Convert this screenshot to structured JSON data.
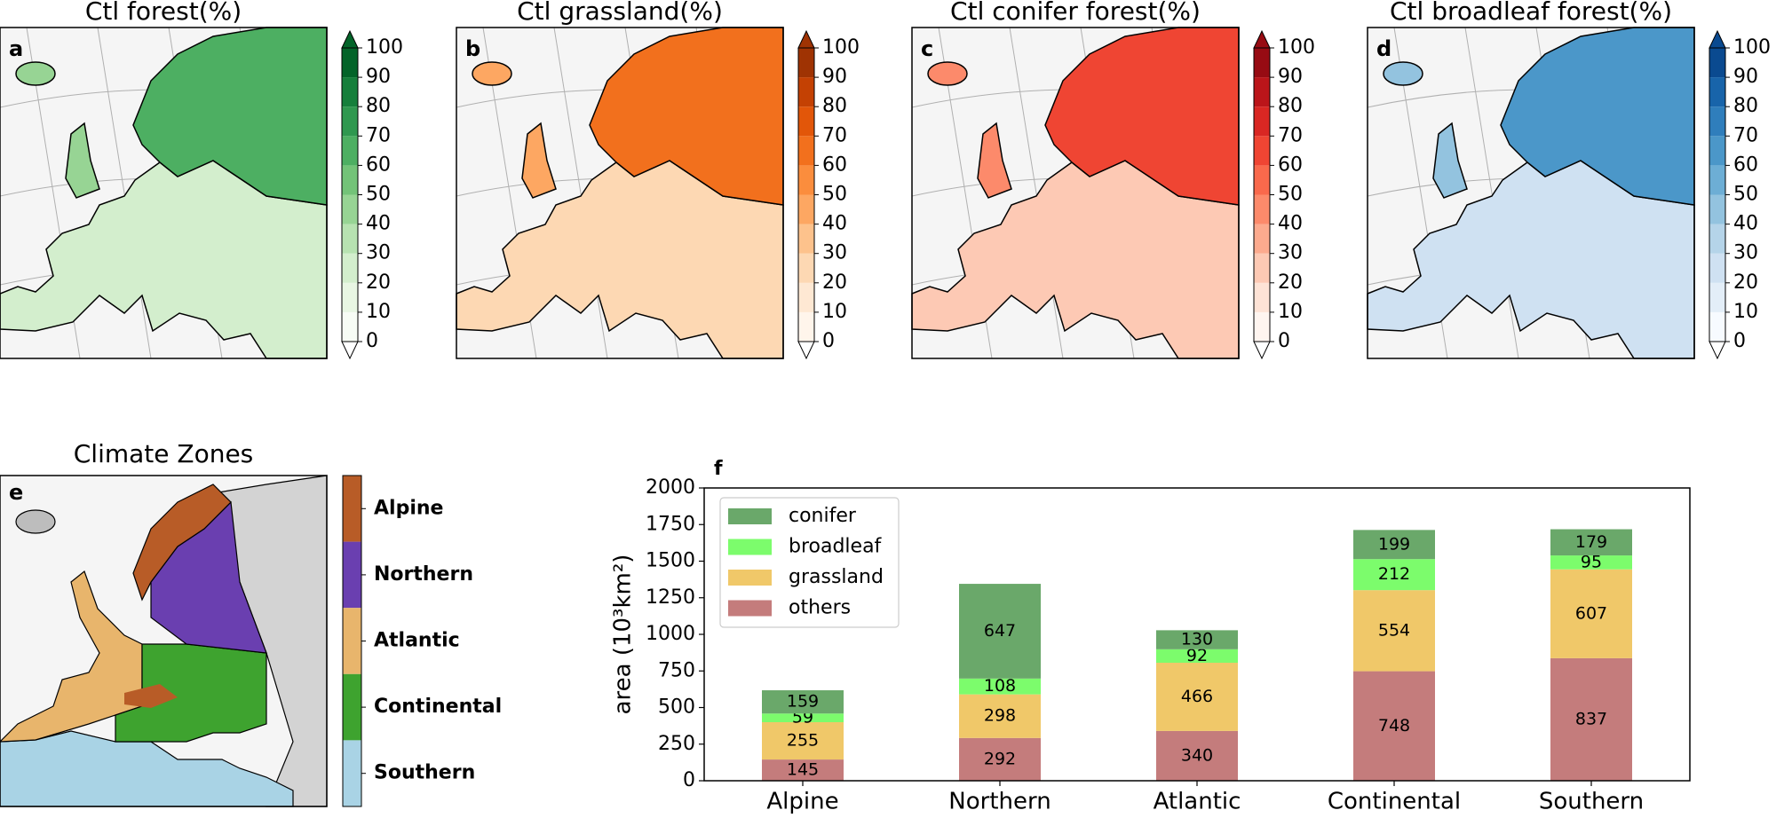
{
  "chart_data": [
    {
      "type": "map",
      "panel": "a",
      "title": "Ctl forest(%)",
      "colormap": [
        "#f7fcf5",
        "#e8f6e3",
        "#d3eecd",
        "#b7e2b1",
        "#97d494",
        "#73c378",
        "#4daf62",
        "#2f984f",
        "#157f3b",
        "#036429"
      ],
      "ylim": [
        0,
        100
      ],
      "yticks": [
        0,
        10,
        20,
        30,
        40,
        50,
        60,
        70,
        80,
        90,
        100
      ]
    },
    {
      "type": "map",
      "panel": "b",
      "title": "Ctl grassland(%)",
      "colormap": [
        "#fff5eb",
        "#fee8d3",
        "#fdd8b3",
        "#fdc28c",
        "#fda762",
        "#fb8d3d",
        "#f2701d",
        "#e25609",
        "#c44103",
        "#9f3303"
      ],
      "ylim": [
        0,
        100
      ],
      "yticks": [
        0,
        10,
        20,
        30,
        40,
        50,
        60,
        70,
        80,
        90,
        100
      ]
    },
    {
      "type": "map",
      "panel": "c",
      "title": "Ctl conifer forest(%)",
      "colormap": [
        "#fff5f0",
        "#fee3d6",
        "#fdc9b4",
        "#fcaa8e",
        "#fc8a6b",
        "#f9694c",
        "#ef4533",
        "#d92723",
        "#bb151a",
        "#970b13"
      ],
      "ylim": [
        0,
        100
      ],
      "yticks": [
        0,
        10,
        20,
        30,
        40,
        50,
        60,
        70,
        80,
        90,
        100
      ]
    },
    {
      "type": "map",
      "panel": "d",
      "title": "Ctl broadleaf forest(%)",
      "colormap": [
        "#f7fbff",
        "#e3eef8",
        "#cfe1f2",
        "#b5d4e9",
        "#93c3df",
        "#6daed5",
        "#4b97c9",
        "#2f7ebc",
        "#1864aa",
        "#0a4a90"
      ],
      "ylim": [
        0,
        100
      ],
      "yticks": [
        0,
        10,
        20,
        30,
        40,
        50,
        60,
        70,
        80,
        90,
        100
      ]
    },
    {
      "type": "zones",
      "panel": "e",
      "title": "Climate Zones",
      "categories": [
        "Alpine",
        "Northern",
        "Atlantic",
        "Continental",
        "Southern"
      ],
      "colors": [
        "#b85c27",
        "#6a3fb0",
        "#e8b56c",
        "#3ea32f",
        "#a9d3e5"
      ]
    },
    {
      "type": "bar",
      "panel": "f",
      "stacked": true,
      "ylabel": "area (10³km²)",
      "categories": [
        "Alpine",
        "Northern",
        "Atlantic",
        "Continental",
        "Southern"
      ],
      "series": [
        {
          "name": "conifer",
          "color": "#6aa86a",
          "values": [
            159,
            647,
            130,
            199,
            179
          ]
        },
        {
          "name": "broadleaf",
          "color": "#7cfc6c",
          "values": [
            59,
            108,
            92,
            212,
            95
          ]
        },
        {
          "name": "grassland",
          "color": "#f0c869",
          "values": [
            255,
            298,
            466,
            554,
            607
          ]
        },
        {
          "name": "others",
          "color": "#c47c7c",
          "values": [
            145,
            292,
            340,
            748,
            837
          ]
        }
      ],
      "ylim": [
        0,
        2000
      ],
      "yticks": [
        0,
        250,
        500,
        750,
        1000,
        1250,
        1500,
        1750,
        2000
      ],
      "legend": "upper left"
    }
  ]
}
